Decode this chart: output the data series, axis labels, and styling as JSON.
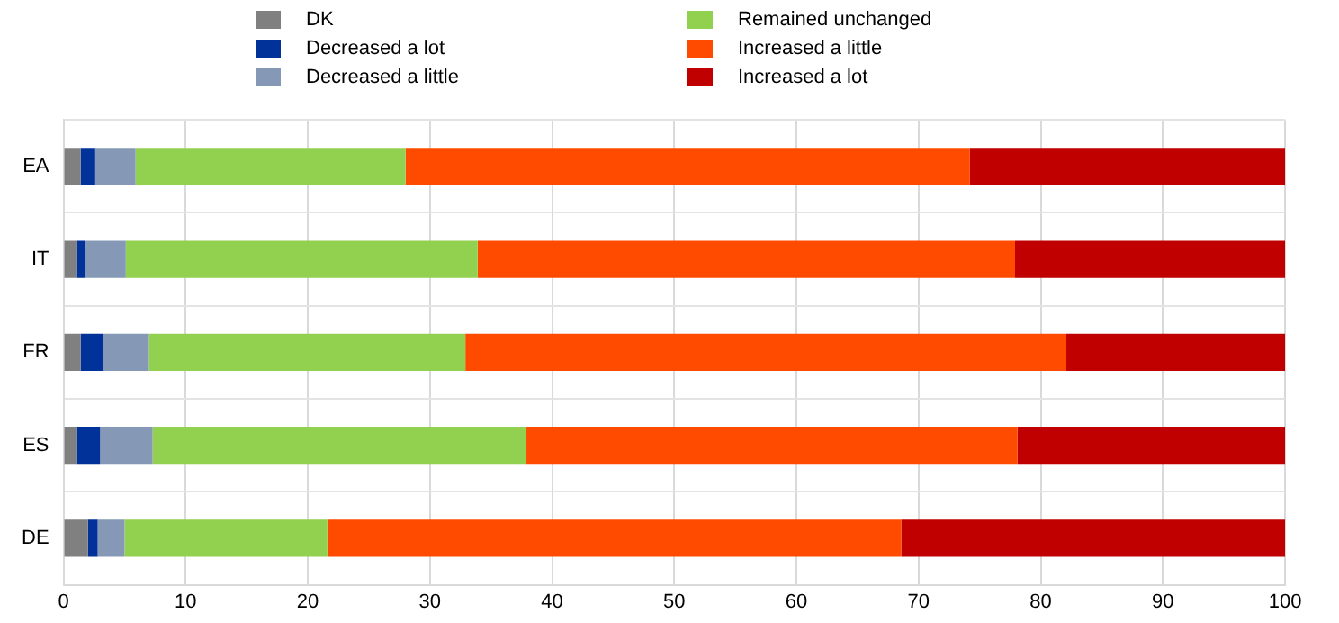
{
  "chart_data": {
    "type": "bar",
    "orientation": "horizontal",
    "stacked": true,
    "categories": [
      "EA",
      "IT",
      "FR",
      "ES",
      "DE"
    ],
    "series": [
      {
        "name": "DK",
        "color": "#808080",
        "values": [
          1.4,
          1.1,
          1.4,
          1.1,
          2.0
        ]
      },
      {
        "name": "Decreased a lot",
        "color": "#003299",
        "values": [
          1.2,
          0.7,
          1.8,
          1.9,
          0.8
        ]
      },
      {
        "name": "Decreased a little",
        "color": "#8599b7",
        "values": [
          3.3,
          3.3,
          3.8,
          4.3,
          2.2
        ]
      },
      {
        "name": "Remained unchanged",
        "color": "#92d050",
        "values": [
          22.1,
          28.8,
          25.9,
          30.6,
          16.6
        ]
      },
      {
        "name": "Increased a little",
        "color": "#ff4b00",
        "values": [
          46.2,
          44.0,
          49.2,
          40.2,
          47.0
        ]
      },
      {
        "name": "Increased a lot",
        "color": "#c00000",
        "values": [
          25.8,
          22.1,
          17.9,
          21.9,
          31.4
        ]
      }
    ],
    "xlim": [
      0,
      100
    ],
    "xticks": [
      0,
      10,
      20,
      30,
      40,
      50,
      60,
      70,
      80,
      90,
      100
    ],
    "grid": true,
    "legend": "top"
  }
}
